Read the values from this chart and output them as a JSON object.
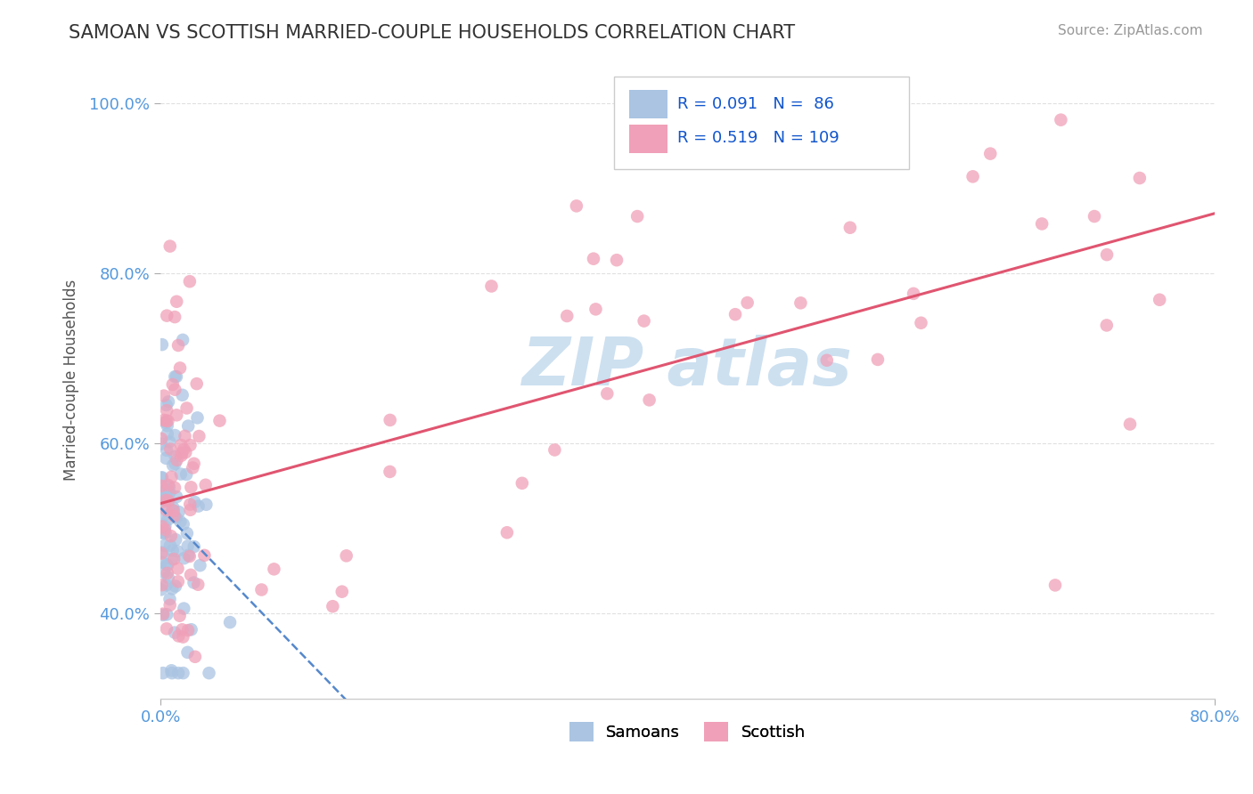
{
  "title": "SAMOAN VS SCOTTISH MARRIED-COUPLE HOUSEHOLDS CORRELATION CHART",
  "source": "Source: ZipAtlas.com",
  "ylabel": "Married-couple Households",
  "x_min": 0.0,
  "x_max": 80.0,
  "y_min": 30.0,
  "y_max": 105.0,
  "y_ticks": [
    40,
    60,
    80,
    100
  ],
  "x_ticks": [
    0,
    80
  ],
  "legend_r1": "R = 0.091",
  "legend_n1": "N =  86",
  "legend_r2": "R = 0.519",
  "legend_n2": "N = 109",
  "samoan_color": "#aac4e2",
  "scottish_color": "#f0a0b8",
  "samoan_line_color": "#5588cc",
  "scottish_line_color": "#e05570",
  "watermark_color": "#cce0f0",
  "background_color": "#ffffff",
  "grid_color": "#e0e0e0",
  "title_color": "#333333",
  "axis_label_color": "#5599dd",
  "samoan_seed": 10,
  "scottish_seed": 20
}
